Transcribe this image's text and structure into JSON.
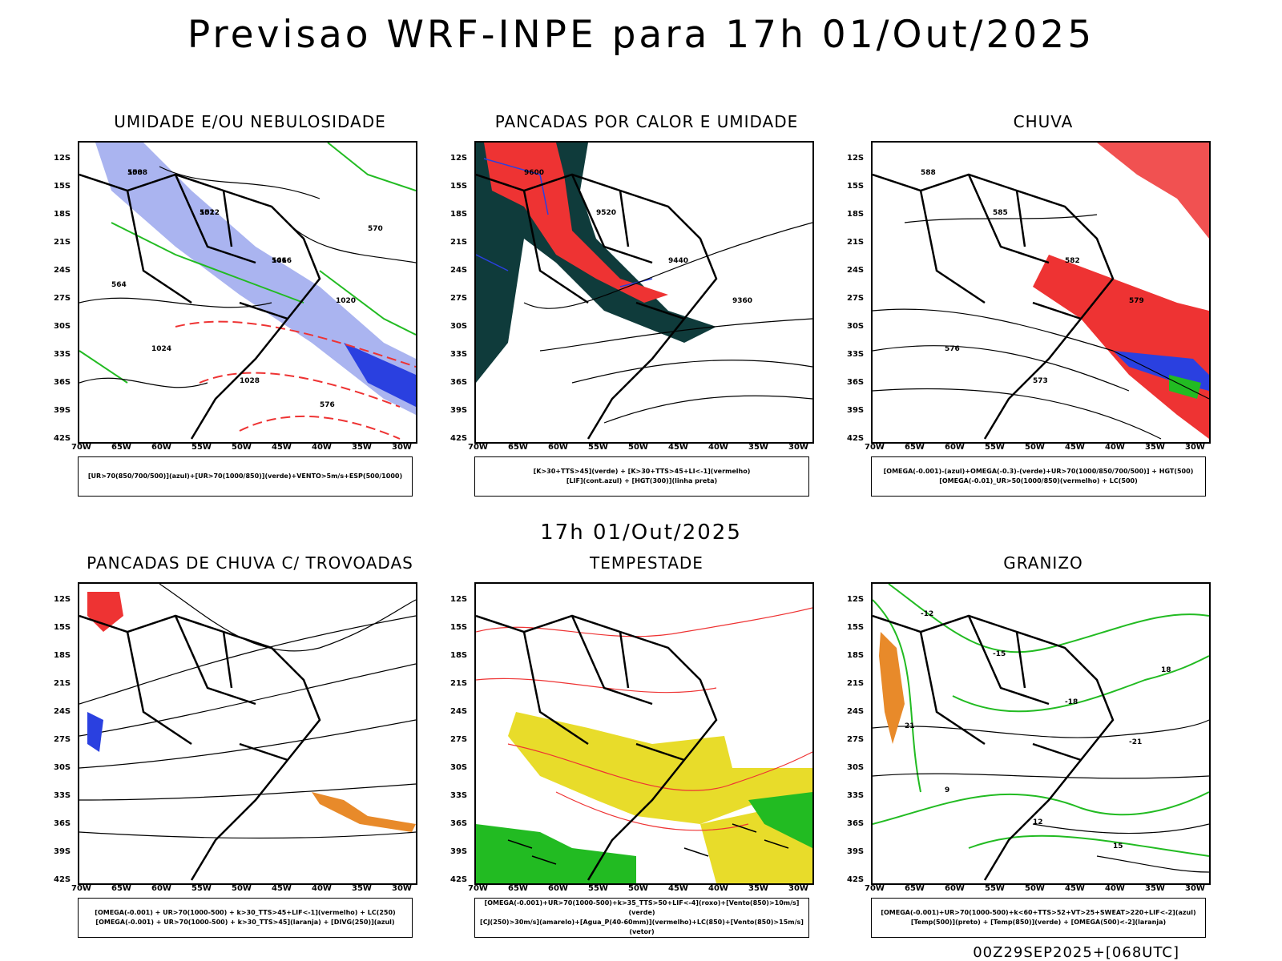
{
  "title": "Previsao WRF-INPE  para 17h 01/Out/2025",
  "mid_title": "17h 01/Out/2025",
  "footer": "00Z29SEP2025+[068UTC]",
  "axes": {
    "lat": [
      "12S",
      "15S",
      "18S",
      "21S",
      "24S",
      "27S",
      "30S",
      "33S",
      "36S",
      "39S",
      "42S"
    ],
    "lon": [
      "70W",
      "65W",
      "60W",
      "55W",
      "50W",
      "45W",
      "40W",
      "35W",
      "30W"
    ]
  },
  "panels": [
    {
      "title": "UMIDADE E/OU NEBULOSIDADE",
      "legend": [
        "[UR>70(850/700/500)](azul)+[UR>70(1000/850)](verde)+VENTO>5m/s+ESP(500/1000)"
      ],
      "labels": [
        "1008",
        "1012",
        "1016",
        "1020",
        "1024",
        "1028",
        "576",
        "570",
        "564",
        "558",
        "552",
        "546"
      ]
    },
    {
      "title": "PANCADAS POR CALOR E UMIDADE",
      "legend": [
        "[K>30+TTS>45](verde)  +  [K>30+TTS>45+LI<-1](vermelho)",
        "[LIF](cont.azul)  +  [HGT(300)](linha preta)"
      ],
      "labels": [
        "9600",
        "9520",
        "9440",
        "9360"
      ]
    },
    {
      "title": "CHUVA",
      "legend": [
        "[OMEGA(-0.001)-(azul)+OMEGA(-0.3)-(verde)+UR>70(1000/850/700/500)]  +  HGT(500)",
        "[OMEGA(-0.01)_UR>50(1000/850)(vermelho)  +  LC(500)"
      ],
      "labels": [
        "588",
        "585",
        "582",
        "579",
        "576",
        "573"
      ]
    },
    {
      "title": "PANCADAS DE CHUVA C/ TROVOADAS",
      "legend": [
        "[OMEGA(-0.001) + UR>70(1000-500) + k>30_TTS>45+LIF<-1](vermelho) + LC(250)",
        "[OMEGA(-0.001) + UR>70(1000-500) + k>30_TTS>45](laranja) + [DIVG(250)](azul)"
      ],
      "labels": []
    },
    {
      "title": "TEMPESTADE",
      "legend": [
        "[OMEGA(-0.001)+UR>70(1000-500)+k>35_TTS>50+LIF<-4](roxo)+[Vento(850)>10m/s](verde)",
        "[CJ(250)>30m/s](amarelo)+[Agua_P(40-60mm)](vermelho)+LC(850)+[Vento(850)>15m/s](vetor)"
      ],
      "labels": []
    },
    {
      "title": "GRANIZO",
      "legend": [
        "[OMEGA(-0.001)+UR>70(1000-500)+k<60+TTS>52+VT>25+SWEAT>220+LIF<-2](azul)",
        "[Temp(500)](preto)  +  [Temp(850)](verde)  +  [OMEGA(500)<-2](laranja)"
      ],
      "labels": [
        "-12",
        "-15",
        "-18",
        "-21",
        "9",
        "12",
        "15",
        "18",
        "21"
      ]
    }
  ],
  "colors": {
    "moist_upper": "#aab4f0",
    "moist_lower": "#2b8f2b",
    "blue": "#2a40e0",
    "red": "#ee3333",
    "darkgreen": "#0f3b3b",
    "orange": "#e88a2a",
    "yellow": "#e8dc2a",
    "green": "#22bb22",
    "purple": "#8a2ad0"
  }
}
